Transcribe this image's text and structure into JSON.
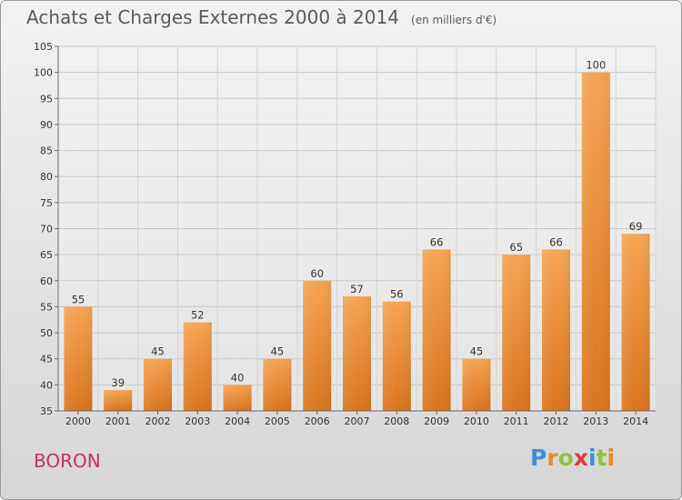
{
  "chart_data": {
    "type": "bar",
    "title": "Achats et Charges Externes 2000 à 2014",
    "subtitle": "(en milliers d'€)",
    "categories": [
      "2000",
      "2001",
      "2002",
      "2003",
      "2004",
      "2005",
      "2006",
      "2007",
      "2008",
      "2009",
      "2010",
      "2011",
      "2012",
      "2013",
      "2014"
    ],
    "values": [
      55,
      39,
      45,
      52,
      40,
      45,
      60,
      57,
      56,
      66,
      45,
      65,
      66,
      100,
      69
    ],
    "ylim": [
      35,
      105
    ],
    "yticks": [
      35,
      40,
      45,
      50,
      55,
      60,
      65,
      70,
      75,
      80,
      85,
      90,
      95,
      100,
      105
    ],
    "grid": true,
    "bar_color": "#e8893a",
    "xlabel": "",
    "ylabel": ""
  },
  "commune": "BORON",
  "brand": {
    "letters": [
      "P",
      "r",
      "o",
      "x",
      "i",
      "t",
      "i"
    ],
    "colors": [
      "#3b8fd6",
      "#e88a2a",
      "#8bc43f",
      "#e23a3a",
      "#3b8fd6",
      "#8bc43f",
      "#e88a2a"
    ]
  }
}
